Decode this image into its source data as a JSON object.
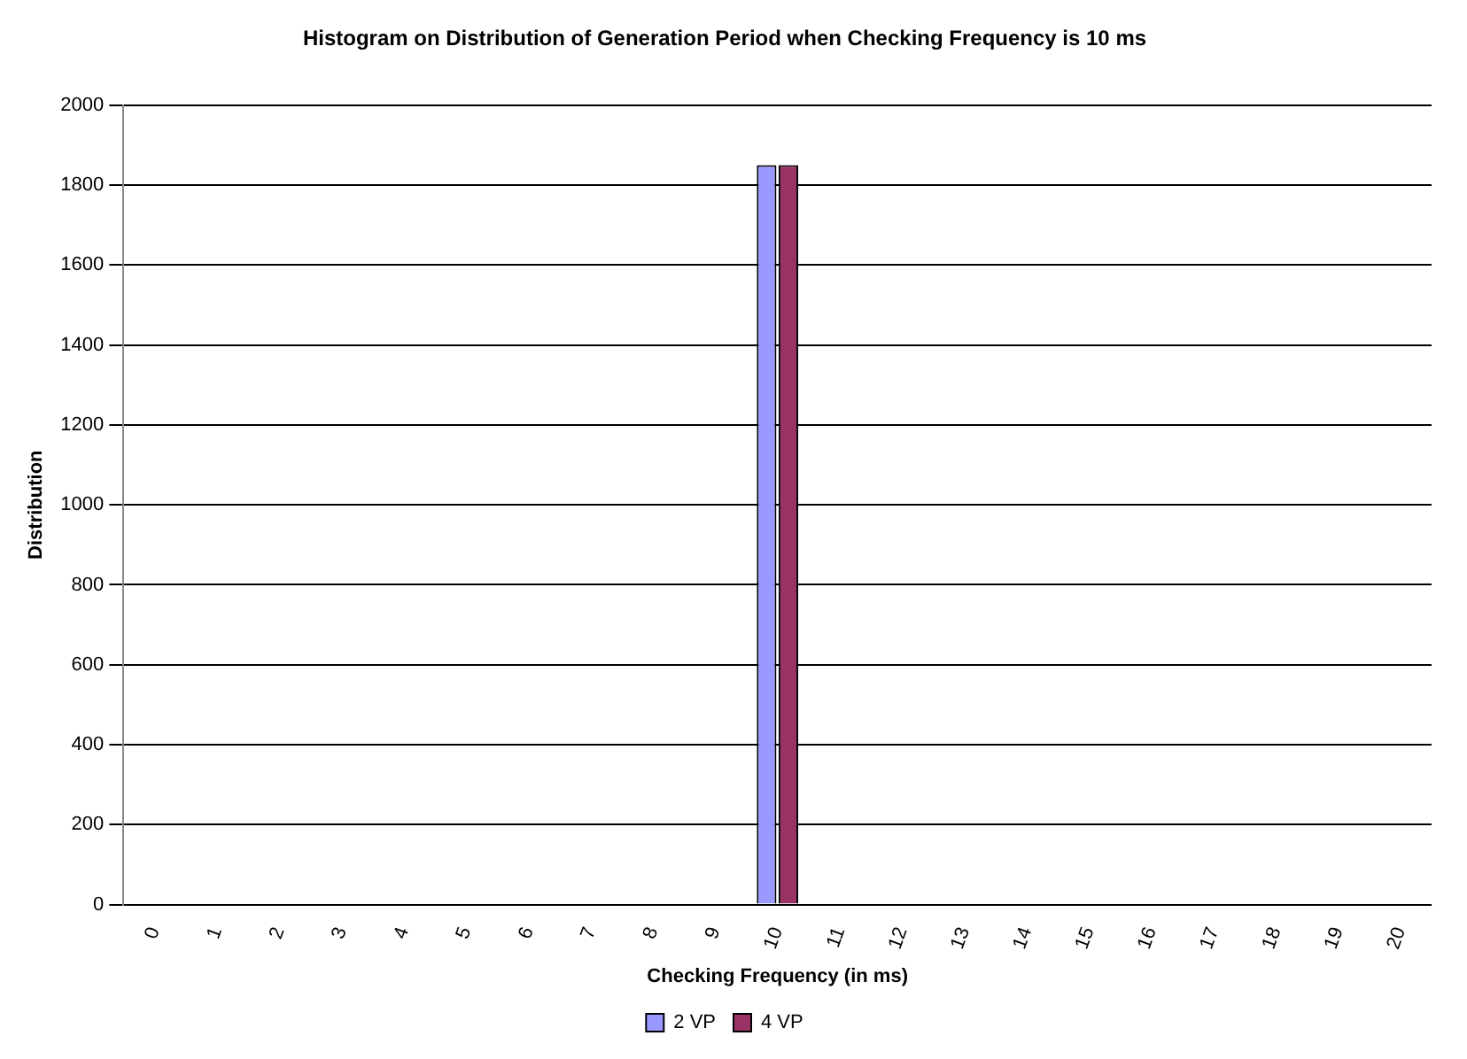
{
  "chart_data": {
    "type": "bar",
    "title": "Histogram on Distribution of Generation Period when Checking Frequency is 10 ms",
    "xlabel": "Checking Frequency (in ms)",
    "ylabel": "Distribution",
    "categories": [
      "0",
      "1",
      "2",
      "3",
      "4",
      "5",
      "6",
      "7",
      "8",
      "9",
      "10",
      "11",
      "12",
      "13",
      "14",
      "15",
      "16",
      "17",
      "18",
      "19",
      "20"
    ],
    "series": [
      {
        "name": "2 VP",
        "color": "#9999ff",
        "values": [
          0,
          0,
          0,
          0,
          0,
          0,
          0,
          0,
          0,
          0,
          1850,
          0,
          0,
          0,
          0,
          0,
          0,
          0,
          0,
          0,
          0
        ]
      },
      {
        "name": "4 VP",
        "color": "#993366",
        "values": [
          0,
          0,
          0,
          0,
          0,
          0,
          0,
          0,
          0,
          0,
          1850,
          0,
          0,
          0,
          0,
          0,
          0,
          0,
          0,
          0,
          0
        ]
      }
    ],
    "ylim": [
      0,
      2000
    ],
    "yticks": [
      0,
      200,
      400,
      600,
      800,
      1000,
      1200,
      1400,
      1600,
      1800,
      2000
    ],
    "grid": "y",
    "legend": "bottom"
  }
}
